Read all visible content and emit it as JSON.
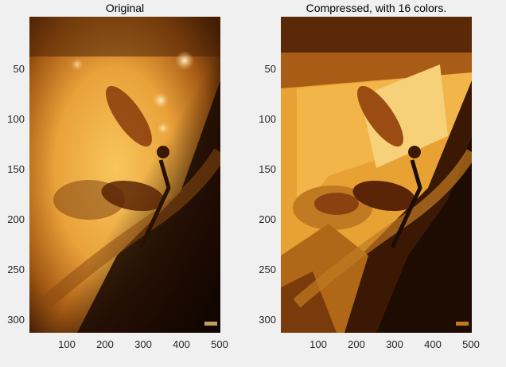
{
  "window": {
    "background": "#f0f0f0"
  },
  "axes": [
    {
      "title": "Original",
      "yticks": [
        "50",
        "100",
        "150",
        "200",
        "250",
        "300"
      ],
      "xticks": [
        "100",
        "200",
        "300",
        "400",
        "500"
      ],
      "image_desc_icon": "dragonfly-photo",
      "watermark": "Jlm In SAF"
    },
    {
      "title": "Compressed, with 16 colors.",
      "yticks": [
        "50",
        "100",
        "150",
        "200",
        "250",
        "300"
      ],
      "xticks": [
        "100",
        "200",
        "300",
        "400",
        "500"
      ],
      "image_desc_icon": "dragonfly-photo-posterized",
      "watermark": "Jlm In SAF"
    }
  ],
  "colors": {
    "amber_light": "#f6c25a",
    "amber": "#e39a2a",
    "brown": "#7a3b0c",
    "dark": "#1e0b02"
  }
}
